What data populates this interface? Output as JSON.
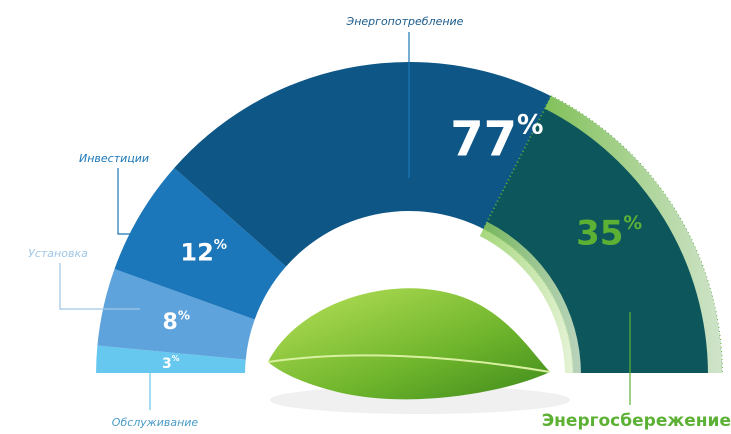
{
  "chart_data": {
    "type": "semi-donut",
    "categories": [
      "Обслуживание",
      "Установка",
      "Инвестиции",
      "Энергопотребление"
    ],
    "values": [
      3,
      8,
      12,
      77
    ],
    "value_labels": [
      "3%",
      "8%",
      "12%",
      "77%"
    ],
    "colors": [
      "#66c8ee",
      "#5fa3dc",
      "#1b77b9",
      "#0d5686"
    ],
    "savings": {
      "name": "Энергосбережение",
      "value": 35,
      "value_label": "35%",
      "color": "#5cb135"
    }
  }
}
